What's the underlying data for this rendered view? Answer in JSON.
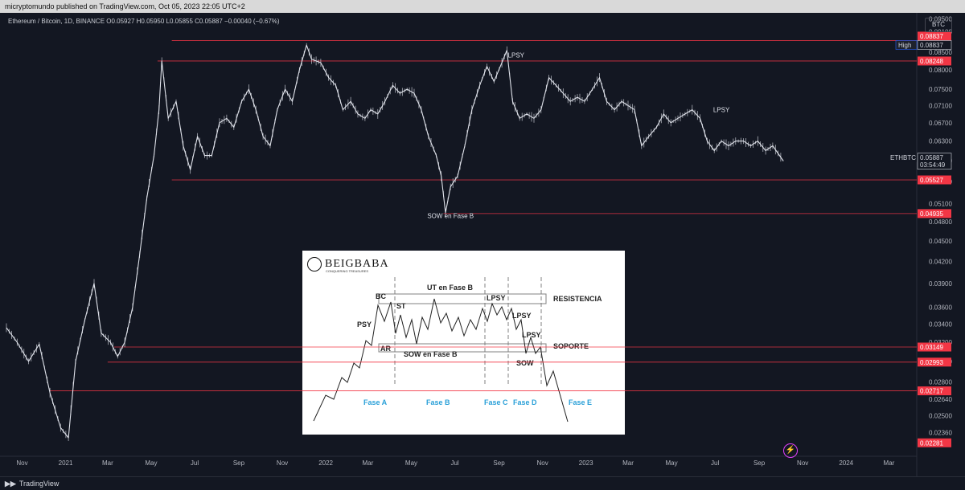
{
  "topbar": {
    "publish_text": "micryptomundo published on TradingView.com, Oct 05, 2023 22:05 UTC+2"
  },
  "legend": {
    "symbol_text": "Ethereum / Bitcoin, 1D, BINANCE O0.05927 H0.05950 L0.05855 C0.05887 −0.00040 (−0.67%)"
  },
  "axis": {
    "currency": "BTC"
  },
  "colors": {
    "background": "#131722",
    "price_line": "#e0e3eb",
    "level_line": "#f23645",
    "label_red": "#f23645",
    "inset_lines": "#808080",
    "inset_phase_text": "#2aa0d8"
  },
  "chart_data": {
    "type": "line",
    "title": "Ethereum / Bitcoin, 1D, BINANCE",
    "ylim": [
      0.0218,
      0.097
    ],
    "y_ticks": [
      0.095,
      0.091,
      0.085,
      0.08,
      0.075,
      0.071,
      0.067,
      0.063,
      0.059,
      0.055,
      0.051,
      0.048,
      0.045,
      0.042,
      0.039,
      0.036,
      0.034,
      0.032,
      0.03,
      0.028,
      0.0264,
      0.025,
      0.0236
    ],
    "y_tick_labels": [
      "0.09500",
      "0.09100",
      "0.08500",
      "0.08000",
      "0.07500",
      "0.07100",
      "0.06700",
      "0.06300",
      "0.05900",
      "0.05500",
      "0.05100",
      "0.04800",
      "0.04500",
      "0.04200",
      "0.03900",
      "0.03600",
      "0.03400",
      "0.03200",
      "0.03000",
      "0.02800",
      "0.02640",
      "0.02500",
      "0.02360"
    ],
    "x_tick_labels": [
      {
        "label": "Nov",
        "date": "2020-11-01"
      },
      {
        "label": "2021",
        "date": "2021-01-01"
      },
      {
        "label": "Mar",
        "date": "2021-03-01"
      },
      {
        "label": "May",
        "date": "2021-05-01"
      },
      {
        "label": "Jul",
        "date": "2021-07-01"
      },
      {
        "label": "Sep",
        "date": "2021-09-01"
      },
      {
        "label": "Nov",
        "date": "2021-11-01"
      },
      {
        "label": "2022",
        "date": "2022-01-01"
      },
      {
        "label": "Mar",
        "date": "2022-03-01"
      },
      {
        "label": "May",
        "date": "2022-05-01"
      },
      {
        "label": "Jul",
        "date": "2022-07-01"
      },
      {
        "label": "Sep",
        "date": "2022-09-01"
      },
      {
        "label": "Nov",
        "date": "2022-11-01"
      },
      {
        "label": "2023",
        "date": "2023-01-01"
      },
      {
        "label": "Mar",
        "date": "2023-03-01"
      },
      {
        "label": "May",
        "date": "2023-05-01"
      },
      {
        "label": "Jul",
        "date": "2023-07-01"
      },
      {
        "label": "Sep",
        "date": "2023-09-01"
      },
      {
        "label": "Nov",
        "date": "2023-11-01"
      },
      {
        "label": "2024",
        "date": "2024-01-01"
      },
      {
        "label": "Mar",
        "date": "2024-03-01"
      }
    ],
    "series": [
      {
        "name": "ETHBTC",
        "points": [
          [
            "2020-10-10",
            0.0336
          ],
          [
            "2020-10-25",
            0.032
          ],
          [
            "2020-11-10",
            0.03
          ],
          [
            "2020-11-25",
            0.0318
          ],
          [
            "2020-12-10",
            0.027
          ],
          [
            "2020-12-25",
            0.024
          ],
          [
            "2021-01-05",
            0.0232
          ],
          [
            "2021-01-15",
            0.03
          ],
          [
            "2021-01-28",
            0.0345
          ],
          [
            "2021-02-10",
            0.039
          ],
          [
            "2021-02-20",
            0.033
          ],
          [
            "2021-03-05",
            0.032
          ],
          [
            "2021-03-15",
            0.0305
          ],
          [
            "2021-03-25",
            0.032
          ],
          [
            "2021-04-05",
            0.036
          ],
          [
            "2021-04-15",
            0.043
          ],
          [
            "2021-04-25",
            0.052
          ],
          [
            "2021-05-05",
            0.06
          ],
          [
            "2021-05-12",
            0.07
          ],
          [
            "2021-05-16",
            0.0825
          ],
          [
            "2021-05-25",
            0.068
          ],
          [
            "2021-06-05",
            0.072
          ],
          [
            "2021-06-15",
            0.062
          ],
          [
            "2021-06-25",
            0.0572
          ],
          [
            "2021-07-05",
            0.064
          ],
          [
            "2021-07-15",
            0.06
          ],
          [
            "2021-07-25",
            0.06
          ],
          [
            "2021-08-05",
            0.067
          ],
          [
            "2021-08-15",
            0.068
          ],
          [
            "2021-08-25",
            0.066
          ],
          [
            "2021-09-05",
            0.072
          ],
          [
            "2021-09-15",
            0.075
          ],
          [
            "2021-09-25",
            0.07
          ],
          [
            "2021-10-05",
            0.064
          ],
          [
            "2021-10-15",
            0.062
          ],
          [
            "2021-10-25",
            0.07
          ],
          [
            "2021-11-05",
            0.075
          ],
          [
            "2021-11-15",
            0.072
          ],
          [
            "2021-11-25",
            0.08
          ],
          [
            "2021-12-05",
            0.087
          ],
          [
            "2021-12-12",
            0.083
          ],
          [
            "2021-12-25",
            0.082
          ],
          [
            "2022-01-05",
            0.078
          ],
          [
            "2022-01-15",
            0.076
          ],
          [
            "2022-01-25",
            0.07
          ],
          [
            "2022-02-05",
            0.072
          ],
          [
            "2022-02-15",
            0.069
          ],
          [
            "2022-02-25",
            0.068
          ],
          [
            "2022-03-05",
            0.07
          ],
          [
            "2022-03-15",
            0.069
          ],
          [
            "2022-03-25",
            0.072
          ],
          [
            "2022-04-05",
            0.076
          ],
          [
            "2022-04-15",
            0.074
          ],
          [
            "2022-04-25",
            0.075
          ],
          [
            "2022-05-05",
            0.074
          ],
          [
            "2022-05-15",
            0.07
          ],
          [
            "2022-05-25",
            0.064
          ],
          [
            "2022-06-05",
            0.06
          ],
          [
            "2022-06-12",
            0.056
          ],
          [
            "2022-06-18",
            0.0495
          ],
          [
            "2022-06-25",
            0.054
          ],
          [
            "2022-07-05",
            0.056
          ],
          [
            "2022-07-15",
            0.062
          ],
          [
            "2022-07-25",
            0.07
          ],
          [
            "2022-08-05",
            0.076
          ],
          [
            "2022-08-15",
            0.081
          ],
          [
            "2022-08-25",
            0.077
          ],
          [
            "2022-09-05",
            0.082
          ],
          [
            "2022-09-12",
            0.0855
          ],
          [
            "2022-09-20",
            0.072
          ],
          [
            "2022-09-30",
            0.068
          ],
          [
            "2022-10-10",
            0.069
          ],
          [
            "2022-10-20",
            0.068
          ],
          [
            "2022-10-30",
            0.07
          ],
          [
            "2022-11-10",
            0.078
          ],
          [
            "2022-11-20",
            0.076
          ],
          [
            "2022-11-30",
            0.074
          ],
          [
            "2022-12-10",
            0.072
          ],
          [
            "2022-12-20",
            0.073
          ],
          [
            "2022-12-30",
            0.072
          ],
          [
            "2023-01-10",
            0.075
          ],
          [
            "2023-01-20",
            0.078
          ],
          [
            "2023-01-30",
            0.072
          ],
          [
            "2023-02-10",
            0.07
          ],
          [
            "2023-02-20",
            0.072
          ],
          [
            "2023-03-01",
            0.071
          ],
          [
            "2023-03-10",
            0.07
          ],
          [
            "2023-03-20",
            0.062
          ],
          [
            "2023-03-30",
            0.064
          ],
          [
            "2023-04-10",
            0.066
          ],
          [
            "2023-04-20",
            0.069
          ],
          [
            "2023-04-30",
            0.067
          ],
          [
            "2023-05-10",
            0.068
          ],
          [
            "2023-05-20",
            0.069
          ],
          [
            "2023-05-30",
            0.07
          ],
          [
            "2023-06-10",
            0.068
          ],
          [
            "2023-06-20",
            0.063
          ],
          [
            "2023-06-30",
            0.061
          ],
          [
            "2023-07-10",
            0.063
          ],
          [
            "2023-07-20",
            0.062
          ],
          [
            "2023-07-30",
            0.063
          ],
          [
            "2023-08-10",
            0.063
          ],
          [
            "2023-08-20",
            0.062
          ],
          [
            "2023-08-30",
            0.063
          ],
          [
            "2023-09-10",
            0.061
          ],
          [
            "2023-09-20",
            0.062
          ],
          [
            "2023-10-05",
            0.0589
          ]
        ]
      }
    ],
    "level_lines": [
      {
        "value": 0.08837,
        "from": "2021-05-30"
      },
      {
        "value": 0.08248,
        "from": "2021-05-10"
      },
      {
        "value": 0.05527,
        "from": "2021-05-30"
      },
      {
        "value": 0.04935,
        "from": "2022-06-15"
      },
      {
        "value": 0.03149,
        "from": "2021-03-10"
      },
      {
        "value": 0.02993,
        "from": "2021-03-01"
      },
      {
        "value": 0.02717,
        "from": "2020-12-10"
      }
    ],
    "price_labels": [
      {
        "value": 0.08837,
        "text": "0.08837",
        "style": "red"
      },
      {
        "value": 0.08837,
        "text": "0.08837",
        "style": "dark",
        "tag": "High"
      },
      {
        "value": 0.08248,
        "text": "0.08248",
        "style": "red"
      },
      {
        "value": 0.05887,
        "text": "0.05887",
        "style": "dark",
        "tag": "ETHBTC",
        "sub": "03:54:49"
      },
      {
        "value": 0.05527,
        "text": "0.05527",
        "style": "red"
      },
      {
        "value": 0.04935,
        "text": "0.04935",
        "style": "red"
      },
      {
        "value": 0.03149,
        "text": "0.03149",
        "style": "red"
      },
      {
        "value": 0.02993,
        "text": "0.02993",
        "style": "red"
      },
      {
        "value": 0.02717,
        "text": "0.02717",
        "style": "red"
      },
      {
        "value": 0.02281,
        "text": "0.02281",
        "style": "red"
      }
    ],
    "annotations": [
      {
        "text": "LPSY",
        "date": "2022-09-25",
        "value": 0.0835
      },
      {
        "text": "LPSY",
        "date": "2023-07-10",
        "value": 0.0695
      },
      {
        "text": "SOW en Fase B",
        "date": "2022-06-25",
        "value": 0.0486
      }
    ]
  },
  "inset": {
    "logo_text": "BEIGBABA",
    "logo_sub": "CONQUERING TREASURES",
    "labels": [
      "PSY",
      "BC",
      "ST",
      "AR",
      "UT en Fase B",
      "SOW en Fase B",
      "LPSY",
      "LPSY",
      "LPSY",
      "SOW",
      "RESISTENCIA",
      "SOPORTE"
    ],
    "phases": [
      "Fase A",
      "Fase B",
      "Fase C",
      "Fase D",
      "Fase E"
    ]
  },
  "footer": {
    "brand": "TradingView"
  }
}
